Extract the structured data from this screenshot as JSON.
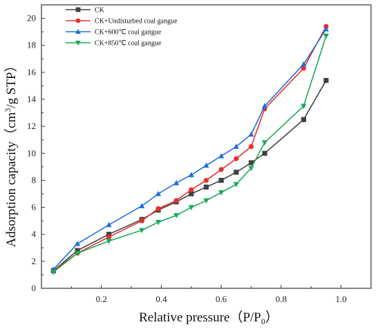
{
  "chart_data": {
    "type": "line",
    "xlabel": "Relative pressure（P/P",
    "xlabel_sub": "0",
    "xlabel_close": "）",
    "ylabel": "Adsorption capacity（cm",
    "ylabel_sup": "3",
    "ylabel_rest": "/g STP）",
    "xlim": [
      0.0,
      1.1
    ],
    "ylim": [
      0,
      21
    ],
    "xticks": [
      "0.2",
      "0.4",
      "0.6",
      "0.8",
      "1.0"
    ],
    "xtick_values": [
      0.2,
      0.4,
      0.6,
      0.8,
      1.0
    ],
    "yticks": [
      "0",
      "2",
      "4",
      "6",
      "8",
      "10",
      "12",
      "14",
      "16",
      "18",
      "20"
    ],
    "ytick_values": [
      0,
      2,
      4,
      6,
      8,
      10,
      12,
      14,
      16,
      18,
      20
    ],
    "grid": false,
    "legend_position": "top-left",
    "series": [
      {
        "name": "CK",
        "color": "#404040",
        "marker": "square",
        "x": [
          0.04,
          0.12,
          0.225,
          0.335,
          0.39,
          0.45,
          0.5,
          0.55,
          0.6,
          0.65,
          0.7,
          0.745,
          0.875,
          0.95
        ],
        "y": [
          1.3,
          2.8,
          4.0,
          5.1,
          5.8,
          6.4,
          7.0,
          7.5,
          8.0,
          8.6,
          9.3,
          10.0,
          12.5,
          15.4
        ]
      },
      {
        "name": "CK+Undisturbed coal gangue",
        "color": "#e8302b",
        "marker": "circle",
        "x": [
          0.04,
          0.12,
          0.225,
          0.335,
          0.39,
          0.45,
          0.5,
          0.55,
          0.6,
          0.65,
          0.7,
          0.745,
          0.875,
          0.95
        ],
        "y": [
          1.3,
          2.6,
          3.8,
          5.0,
          5.9,
          6.5,
          7.3,
          8.0,
          8.8,
          9.6,
          10.5,
          13.3,
          16.3,
          19.4
        ]
      },
      {
        "name": "CK+600℃ coal gangue",
        "color": "#1f6fdc",
        "marker": "triangle-up",
        "x": [
          0.04,
          0.12,
          0.225,
          0.335,
          0.39,
          0.45,
          0.5,
          0.55,
          0.6,
          0.65,
          0.7,
          0.745,
          0.875,
          0.95
        ],
        "y": [
          1.4,
          3.3,
          4.7,
          6.1,
          7.0,
          7.8,
          8.4,
          9.1,
          9.8,
          10.5,
          11.4,
          13.5,
          16.6,
          19.2
        ]
      },
      {
        "name": "CK+850℃ coal gangue",
        "color": "#1aaa5a",
        "marker": "triangle-down",
        "x": [
          0.04,
          0.12,
          0.225,
          0.335,
          0.39,
          0.45,
          0.5,
          0.55,
          0.6,
          0.65,
          0.7,
          0.745,
          0.875,
          0.95
        ],
        "y": [
          1.2,
          2.6,
          3.5,
          4.3,
          4.9,
          5.4,
          6.0,
          6.5,
          7.1,
          7.7,
          8.9,
          10.8,
          13.5,
          18.7
        ]
      }
    ]
  }
}
